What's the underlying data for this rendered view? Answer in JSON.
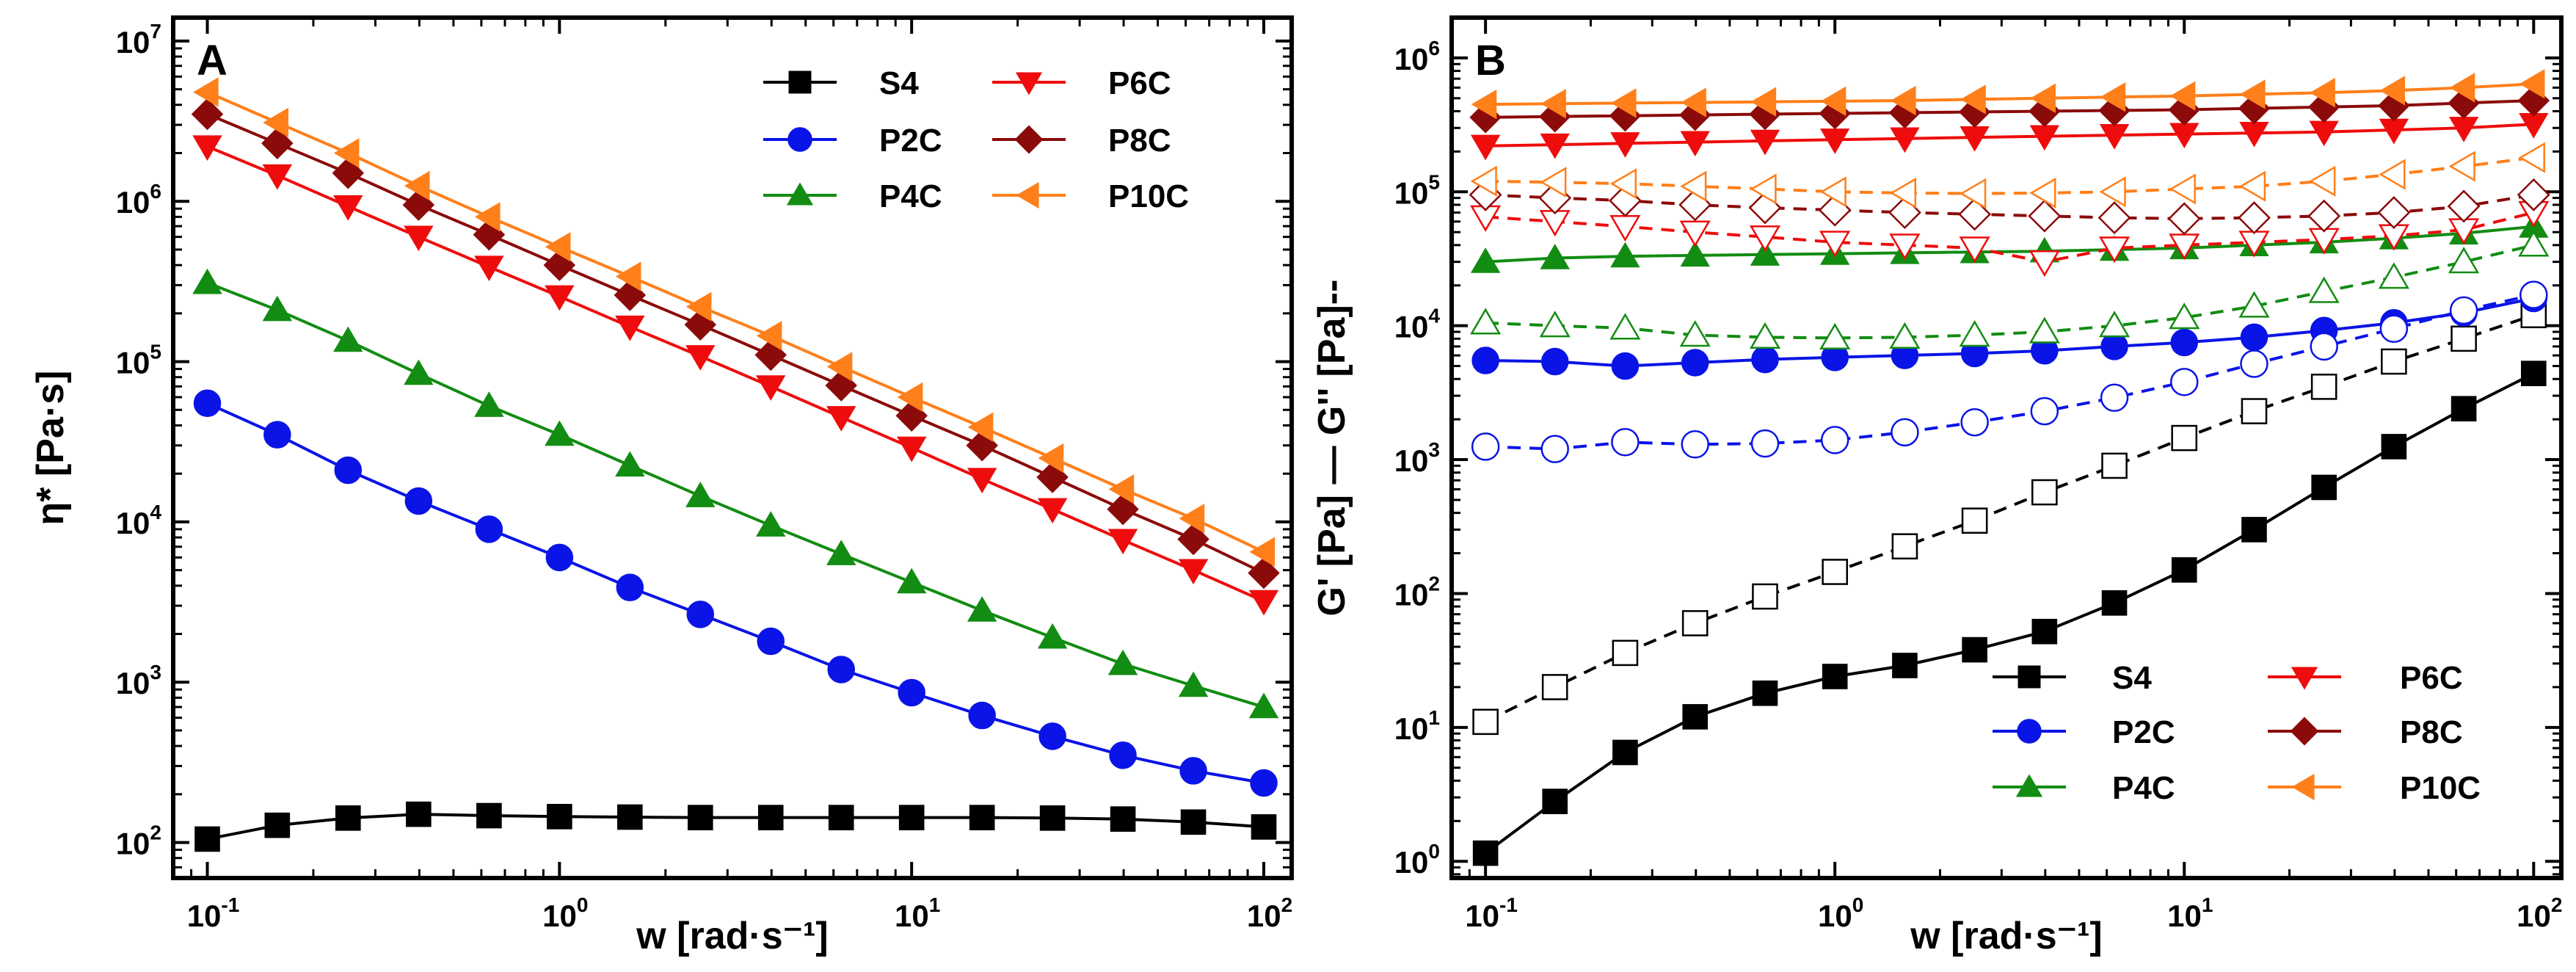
{
  "chart_data": [
    {
      "panel": "A",
      "type": "line",
      "title": "",
      "xlabel": "w [rad·s⁻¹]",
      "ylabel": "η* [Pa·s]",
      "xscale": "log",
      "yscale": "log",
      "xlim": [
        0.08,
        120
      ],
      "ylim": [
        60,
        14000000
      ],
      "xticks": [
        {
          "value": 0.1,
          "base": "10",
          "exp": "-1"
        },
        {
          "value": 1,
          "base": "10",
          "exp": "0"
        },
        {
          "value": 10,
          "base": "10",
          "exp": "1"
        },
        {
          "value": 100,
          "base": "10",
          "exp": "2"
        }
      ],
      "yticks": [
        {
          "value": 100,
          "base": "10",
          "exp": "2"
        },
        {
          "value": 1000,
          "base": "10",
          "exp": "3"
        },
        {
          "value": 10000,
          "base": "10",
          "exp": "4"
        },
        {
          "value": 100000,
          "base": "10",
          "exp": "5"
        },
        {
          "value": 1000000,
          "base": "10",
          "exp": "6"
        },
        {
          "value": 10000000,
          "base": "10",
          "exp": "7"
        }
      ],
      "legend_position": "top-right",
      "x": [
        0.1,
        0.158,
        0.251,
        0.398,
        0.631,
        1,
        1.585,
        2.512,
        3.981,
        6.31,
        10,
        15.85,
        25.12,
        39.81,
        63.1,
        100
      ],
      "series": [
        {
          "name": "S4",
          "color": "#000000",
          "marker": "square",
          "filled": true,
          "dashed": false,
          "values": [
            105,
            128,
            142,
            150,
            147,
            145,
            144,
            143,
            143,
            143,
            143,
            143,
            142,
            140,
            134,
            125
          ]
        },
        {
          "name": "P2C",
          "color": "#0a14e6",
          "marker": "circle",
          "filled": true,
          "dashed": false,
          "values": [
            55000,
            35000,
            21000,
            13500,
            9000,
            6000,
            3900,
            2650,
            1800,
            1200,
            860,
            620,
            460,
            350,
            280,
            235
          ]
        },
        {
          "name": "P4C",
          "color": "#128c12",
          "marker": "triangle-up",
          "filled": true,
          "dashed": false,
          "values": [
            310000,
            210000,
            135000,
            84000,
            53000,
            35000,
            22500,
            14500,
            9500,
            6300,
            4200,
            2800,
            1900,
            1300,
            950,
            700
          ]
        },
        {
          "name": "P6C",
          "color": "#ef0c0c",
          "marker": "triangle-down",
          "filled": true,
          "dashed": false,
          "values": [
            2200000,
            1450000,
            930000,
            600000,
            390000,
            255000,
            165000,
            108000,
            70000,
            45000,
            29000,
            18500,
            12000,
            7700,
            5000,
            3200
          ]
        },
        {
          "name": "P8C",
          "color": "#8b0a0a",
          "marker": "diamond",
          "filled": true,
          "dashed": false,
          "values": [
            3500000,
            2300000,
            1500000,
            950000,
            620000,
            400000,
            260000,
            170000,
            110000,
            71000,
            46000,
            30000,
            19000,
            12000,
            7800,
            4800
          ]
        },
        {
          "name": "P10C",
          "color": "#ff7f1a",
          "marker": "triangle-left",
          "filled": true,
          "dashed": false,
          "values": [
            4800000,
            3100000,
            2000000,
            1250000,
            800000,
            520000,
            340000,
            220000,
            145000,
            93000,
            60000,
            39000,
            25000,
            16000,
            10500,
            6500
          ]
        }
      ]
    },
    {
      "panel": "B",
      "type": "line",
      "title": "",
      "xlabel": "w [rad·s⁻¹]",
      "ylabel_prefix": "G' [Pa] —",
      "ylabel_suffix": "G'' [Pa]--",
      "xscale": "log",
      "yscale": "log",
      "xlim": [
        0.08,
        120
      ],
      "ylim": [
        0.75,
        2000000
      ],
      "xticks": [
        {
          "value": 0.1,
          "base": "10",
          "exp": "-1"
        },
        {
          "value": 1,
          "base": "10",
          "exp": "0"
        },
        {
          "value": 10,
          "base": "10",
          "exp": "1"
        },
        {
          "value": 100,
          "base": "10",
          "exp": "2"
        }
      ],
      "yticks": [
        {
          "value": 1,
          "base": "10",
          "exp": "0"
        },
        {
          "value": 10,
          "base": "10",
          "exp": "1"
        },
        {
          "value": 100,
          "base": "10",
          "exp": "2"
        },
        {
          "value": 1000,
          "base": "10",
          "exp": "3"
        },
        {
          "value": 10000,
          "base": "10",
          "exp": "4"
        },
        {
          "value": 100000,
          "base": "10",
          "exp": "5"
        },
        {
          "value": 1000000,
          "base": "10",
          "exp": "6"
        }
      ],
      "legend_position": "bottom-right",
      "x": [
        0.1,
        0.158,
        0.251,
        0.398,
        0.631,
        1,
        1.585,
        2.512,
        3.981,
        6.31,
        10,
        15.85,
        25.12,
        39.81,
        63.1,
        100
      ],
      "series": [
        {
          "name": "S4 G'",
          "color": "#000000",
          "marker": "square",
          "filled": true,
          "dashed": false,
          "values": [
            1.15,
            2.8,
            6.5,
            12,
            18,
            24,
            29,
            38,
            52,
            85,
            150,
            300,
            620,
            1250,
            2400,
            4400
          ]
        },
        {
          "name": "S4 G''",
          "color": "#000000",
          "marker": "square",
          "filled": false,
          "dashed": true,
          "values": [
            11,
            20,
            36,
            60,
            95,
            145,
            225,
            350,
            570,
            900,
            1450,
            2300,
            3500,
            5400,
            8000,
            12000
          ]
        },
        {
          "name": "P2C G'",
          "color": "#0a14e6",
          "marker": "circle",
          "filled": true,
          "dashed": false,
          "values": [
            5500,
            5400,
            5000,
            5300,
            5600,
            5800,
            6000,
            6200,
            6500,
            7000,
            7500,
            8200,
            9200,
            10500,
            12500,
            16000
          ]
        },
        {
          "name": "P2C G''",
          "color": "#0a14e6",
          "marker": "circle",
          "filled": false,
          "dashed": true,
          "values": [
            1250,
            1200,
            1350,
            1300,
            1320,
            1400,
            1600,
            1900,
            2300,
            2900,
            3800,
            5200,
            7000,
            9500,
            13000,
            17000
          ]
        },
        {
          "name": "P4C G'",
          "color": "#128c12",
          "marker": "triangle-up",
          "filled": true,
          "dashed": false,
          "values": [
            30000,
            32000,
            33000,
            33500,
            34000,
            34500,
            35000,
            35500,
            36000,
            37000,
            38000,
            40000,
            42000,
            45000,
            49000,
            55000
          ]
        },
        {
          "name": "P4C G''",
          "color": "#128c12",
          "marker": "triangle-up",
          "filled": false,
          "dashed": true,
          "values": [
            10500,
            10000,
            9600,
            8500,
            8200,
            8100,
            8200,
            8500,
            9000,
            10000,
            11500,
            14000,
            18000,
            23000,
            30000,
            40000
          ]
        },
        {
          "name": "P6C G'",
          "color": "#ef0c0c",
          "marker": "triangle-down",
          "filled": true,
          "dashed": false,
          "values": [
            220000,
            225000,
            230000,
            235000,
            240000,
            245000,
            250000,
            255000,
            260000,
            265000,
            270000,
            275000,
            280000,
            290000,
            300000,
            320000
          ]
        },
        {
          "name": "P6C G''",
          "color": "#ef0c0c",
          "marker": "triangle-down",
          "filled": false,
          "dashed": true,
          "values": [
            65000,
            60000,
            55000,
            50000,
            46000,
            42000,
            40000,
            38000,
            30000,
            38000,
            40000,
            42000,
            44000,
            47000,
            52000,
            70000
          ]
        },
        {
          "name": "P8C G'",
          "color": "#8b0a0a",
          "marker": "diamond",
          "filled": true,
          "dashed": false,
          "values": [
            360000,
            365000,
            370000,
            375000,
            380000,
            385000,
            390000,
            395000,
            400000,
            405000,
            410000,
            420000,
            430000,
            440000,
            460000,
            480000
          ]
        },
        {
          "name": "P8C G''",
          "color": "#8b0a0a",
          "marker": "diamond",
          "filled": false,
          "dashed": true,
          "values": [
            95000,
            90000,
            86000,
            80000,
            76000,
            73000,
            70000,
            68000,
            66000,
            64000,
            63000,
            64000,
            66000,
            70000,
            78000,
            95000
          ]
        },
        {
          "name": "P10C G'",
          "color": "#ff7f1a",
          "marker": "triangle-left",
          "filled": true,
          "dashed": false,
          "values": [
            450000,
            455000,
            460000,
            465000,
            470000,
            475000,
            480000,
            490000,
            500000,
            510000,
            520000,
            535000,
            550000,
            570000,
            600000,
            640000
          ]
        },
        {
          "name": "P10C G''",
          "color": "#ff7f1a",
          "marker": "triangle-left",
          "filled": false,
          "dashed": true,
          "values": [
            120000,
            118000,
            115000,
            110000,
            105000,
            100000,
            98000,
            97000,
            98000,
            100000,
            105000,
            110000,
            120000,
            135000,
            155000,
            180000
          ]
        }
      ],
      "legend": [
        {
          "name": "S4",
          "color": "#000000",
          "marker": "square"
        },
        {
          "name": "P6C",
          "color": "#ef0c0c",
          "marker": "triangle-down"
        },
        {
          "name": "P2C",
          "color": "#0a14e6",
          "marker": "circle"
        },
        {
          "name": "P8C",
          "color": "#8b0a0a",
          "marker": "diamond"
        },
        {
          "name": "P4C",
          "color": "#128c12",
          "marker": "triangle-up"
        },
        {
          "name": "P10C",
          "color": "#ff7f1a",
          "marker": "triangle-left"
        }
      ]
    }
  ]
}
